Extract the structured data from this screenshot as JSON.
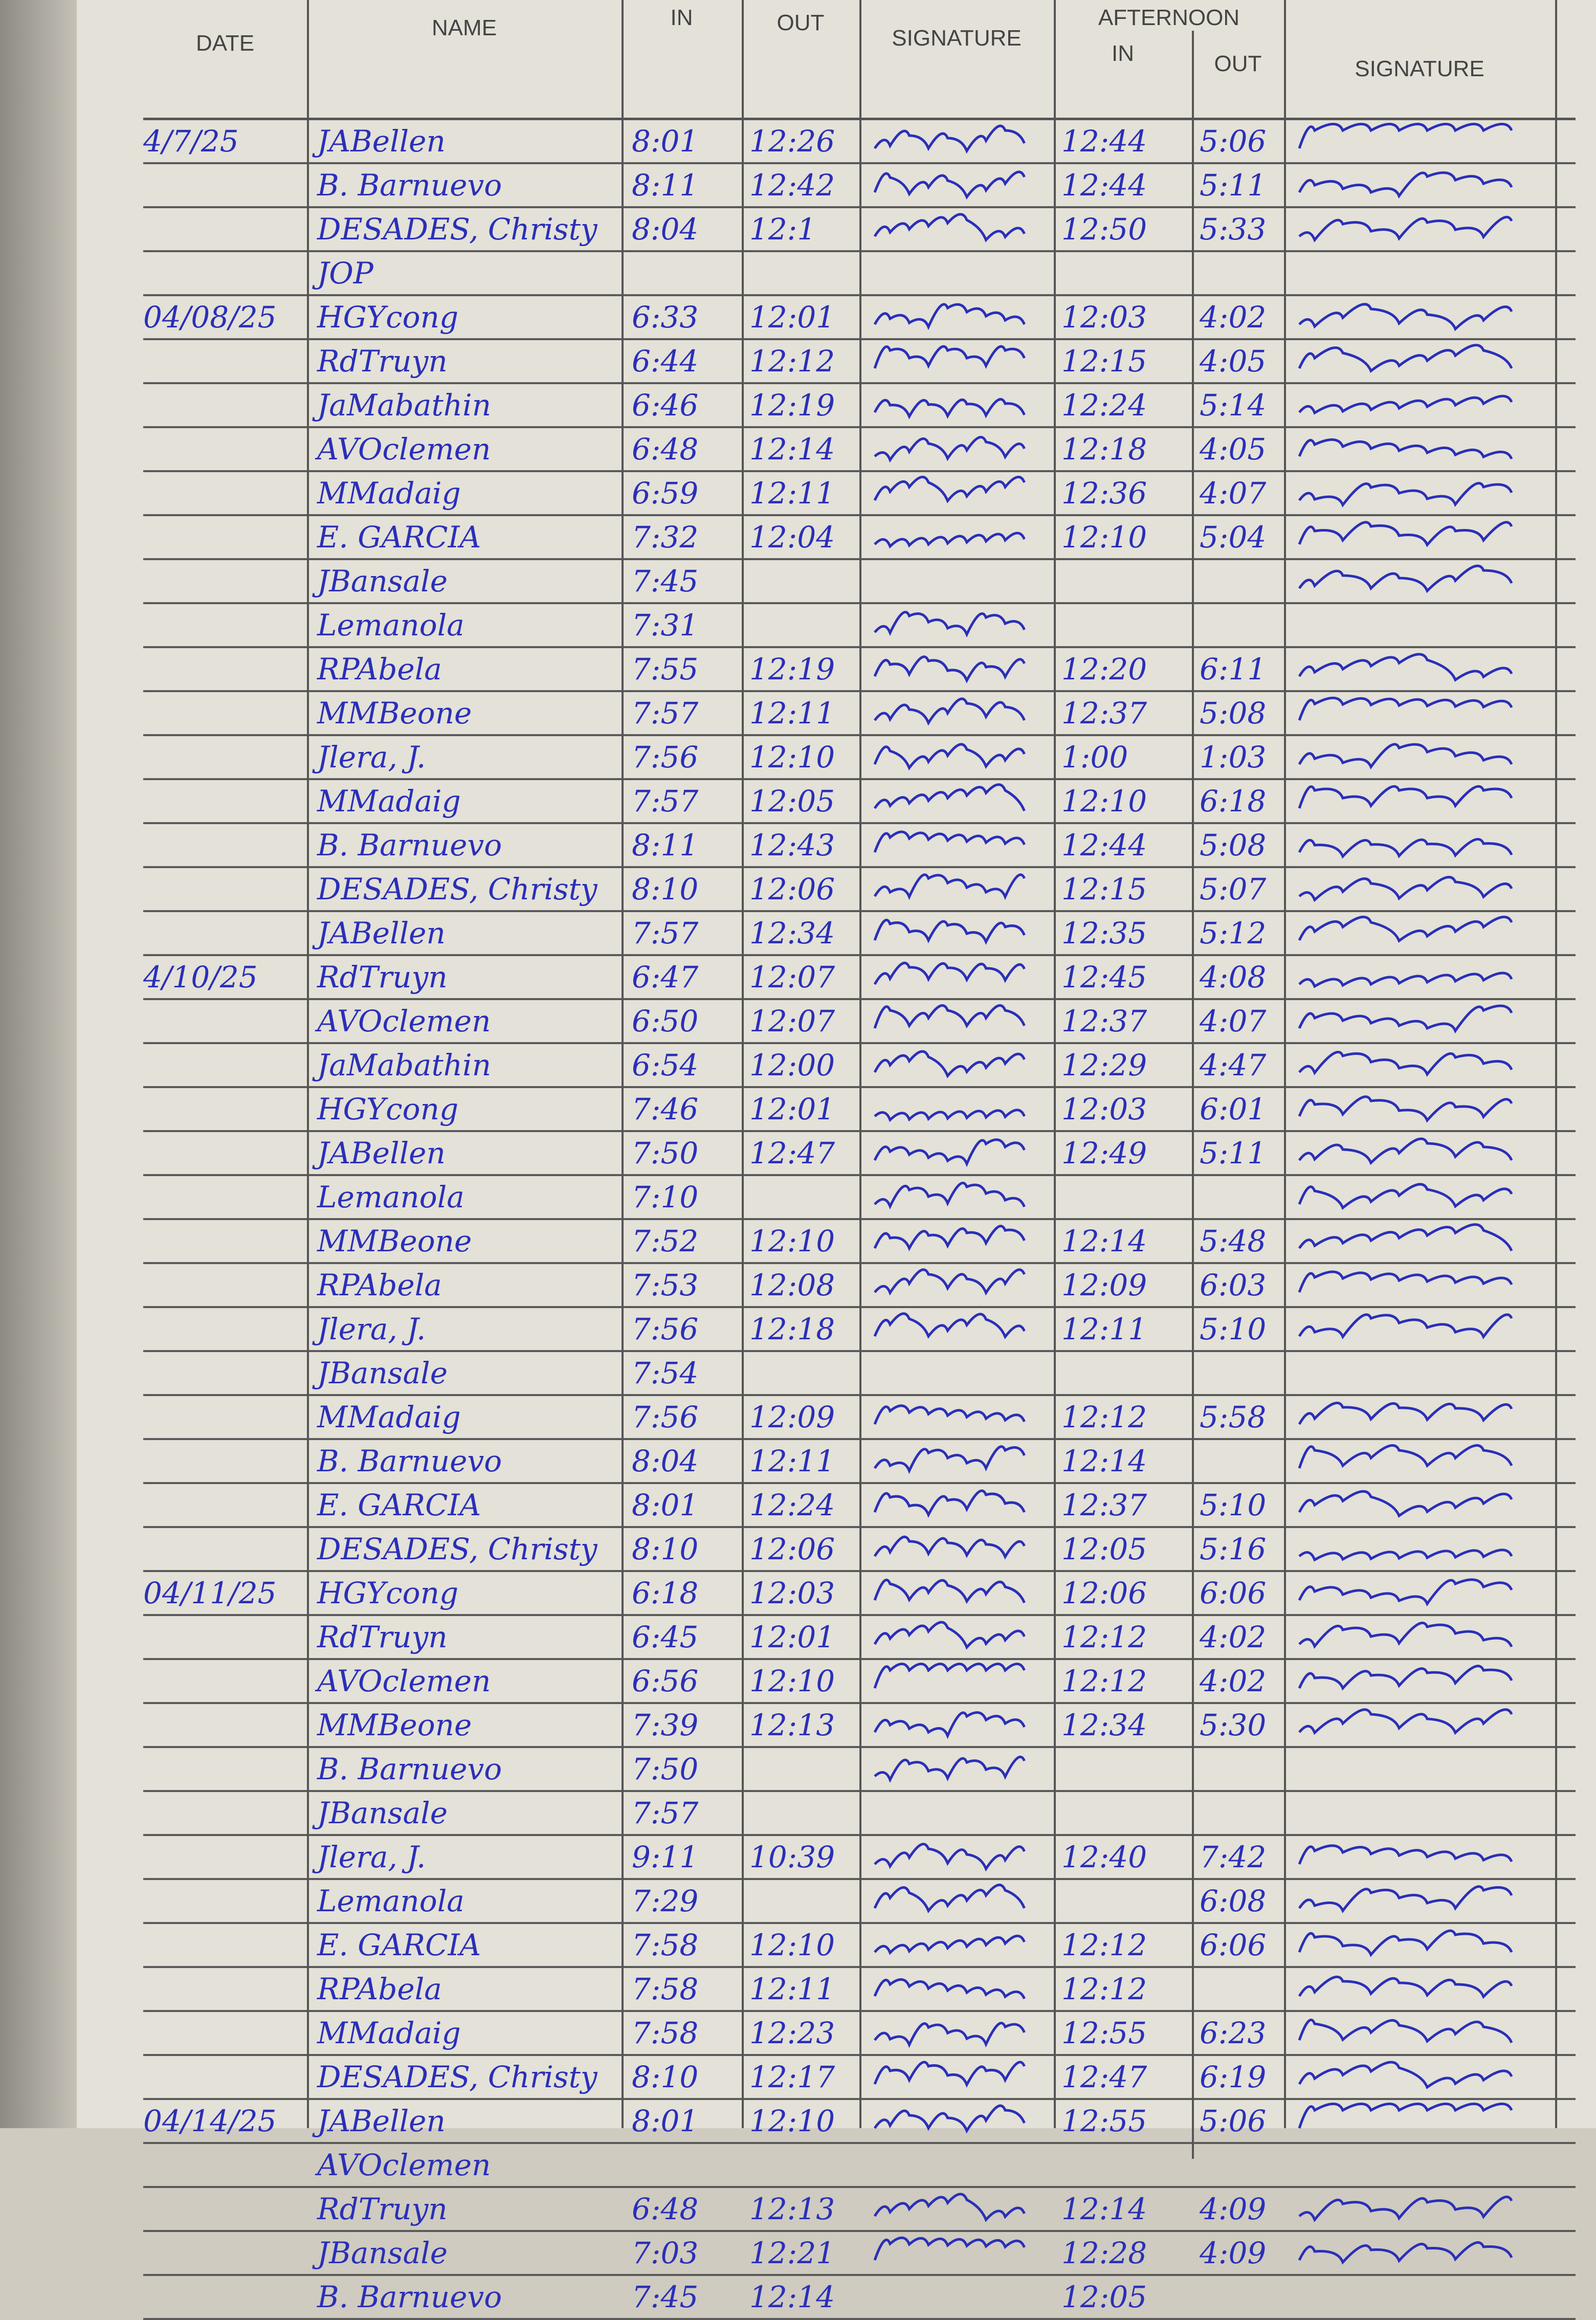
{
  "header": {
    "date": "DATE",
    "name": "NAME",
    "am_in": "IN",
    "am_out": "OUT",
    "am_signature": "SIGNATURE",
    "afternoon": "AFTERNOON",
    "pm_in": "IN",
    "pm_out": "OUT",
    "pm_signature": "SIGNATURE"
  },
  "ink_color": "#2a2fb8",
  "rows": [
    {
      "date": "4/7/25",
      "name": "JABellen",
      "am_in": "8:01",
      "am_out": "12:26",
      "am_sig": true,
      "pm_in": "12:44",
      "pm_out": "5:06",
      "pm_sig": true
    },
    {
      "date": "",
      "name": "B. Barnuevo",
      "am_in": "8:11",
      "am_out": "12:42",
      "am_sig": true,
      "pm_in": "12:44",
      "pm_out": "5:11",
      "pm_sig": true
    },
    {
      "date": "",
      "name": "DESADES, Christy",
      "am_in": "8:04",
      "am_out": "12:1",
      "am_sig": true,
      "pm_in": "12:50",
      "pm_out": "5:33",
      "pm_sig": true
    },
    {
      "date": "",
      "name": "JOP",
      "am_in": "",
      "am_out": "",
      "am_sig": false,
      "pm_in": "",
      "pm_out": "",
      "pm_sig": false
    },
    {
      "date": "04/08/25",
      "name": "HGYcong",
      "am_in": "6:33",
      "am_out": "12:01",
      "am_sig": true,
      "pm_in": "12:03",
      "pm_out": "4:02",
      "pm_sig": true
    },
    {
      "date": "",
      "name": "RdTruyn",
      "am_in": "6:44",
      "am_out": "12:12",
      "am_sig": true,
      "pm_in": "12:15",
      "pm_out": "4:05",
      "pm_sig": true
    },
    {
      "date": "",
      "name": "JaMabathin",
      "am_in": "6:46",
      "am_out": "12:19",
      "am_sig": true,
      "pm_in": "12:24",
      "pm_out": "5:14",
      "pm_sig": true
    },
    {
      "date": "",
      "name": "AVOclemen",
      "am_in": "6:48",
      "am_out": "12:14",
      "am_sig": true,
      "pm_in": "12:18",
      "pm_out": "4:05",
      "pm_sig": true
    },
    {
      "date": "",
      "name": "MMadaig",
      "am_in": "6:59",
      "am_out": "12:11",
      "am_sig": true,
      "pm_in": "12:36",
      "pm_out": "4:07",
      "pm_sig": true
    },
    {
      "date": "",
      "name": "E. GARCIA",
      "am_in": "7:32",
      "am_out": "12:04",
      "am_sig": true,
      "pm_in": "12:10",
      "pm_out": "5:04",
      "pm_sig": true
    },
    {
      "date": "",
      "name": "JBansale",
      "am_in": "7:45",
      "am_out": "",
      "am_sig": false,
      "pm_in": "",
      "pm_out": "",
      "pm_sig": true
    },
    {
      "date": "",
      "name": "Lemanola",
      "am_in": "7:31",
      "am_out": "",
      "am_sig": true,
      "pm_in": "",
      "pm_out": "",
      "pm_sig": false
    },
    {
      "date": "",
      "name": "RPAbela",
      "am_in": "7:55",
      "am_out": "12:19",
      "am_sig": true,
      "pm_in": "12:20",
      "pm_out": "6:11",
      "pm_sig": true
    },
    {
      "date": "",
      "name": "MMBeone",
      "am_in": "7:57",
      "am_out": "12:11",
      "am_sig": true,
      "pm_in": "12:37",
      "pm_out": "5:08",
      "pm_sig": true
    },
    {
      "date": "",
      "name": "Jlera, J.",
      "am_in": "7:56",
      "am_out": "12:10",
      "am_sig": true,
      "pm_in": "1:00",
      "pm_out": "1:03",
      "pm_sig": true
    },
    {
      "date": "",
      "name": "MMadaig",
      "am_in": "7:57",
      "am_out": "12:05",
      "am_sig": true,
      "pm_in": "12:10",
      "pm_out": "6:18",
      "pm_sig": true
    },
    {
      "date": "",
      "name": "B. Barnuevo",
      "am_in": "8:11",
      "am_out": "12:43",
      "am_sig": true,
      "pm_in": "12:44",
      "pm_out": "5:08",
      "pm_sig": true
    },
    {
      "date": "",
      "name": "DESADES, Christy",
      "am_in": "8:10",
      "am_out": "12:06",
      "am_sig": true,
      "pm_in": "12:15",
      "pm_out": "5:07",
      "pm_sig": true
    },
    {
      "date": "",
      "name": "JABellen",
      "am_in": "7:57",
      "am_out": "12:34",
      "am_sig": true,
      "pm_in": "12:35",
      "pm_out": "5:12",
      "pm_sig": true
    },
    {
      "date": "4/10/25",
      "name": "RdTruyn",
      "am_in": "6:47",
      "am_out": "12:07",
      "am_sig": true,
      "pm_in": "12:45",
      "pm_out": "4:08",
      "pm_sig": true
    },
    {
      "date": "",
      "name": "AVOclemen",
      "am_in": "6:50",
      "am_out": "12:07",
      "am_sig": true,
      "pm_in": "12:37",
      "pm_out": "4:07",
      "pm_sig": true
    },
    {
      "date": "",
      "name": "JaMabathin",
      "am_in": "6:54",
      "am_out": "12:00",
      "am_sig": true,
      "pm_in": "12:29",
      "pm_out": "4:47",
      "pm_sig": true
    },
    {
      "date": "",
      "name": "HGYcong",
      "am_in": "7:46",
      "am_out": "12:01",
      "am_sig": true,
      "pm_in": "12:03",
      "pm_out": "6:01",
      "pm_sig": true
    },
    {
      "date": "",
      "name": "JABellen",
      "am_in": "7:50",
      "am_out": "12:47",
      "am_sig": true,
      "pm_in": "12:49",
      "pm_out": "5:11",
      "pm_sig": true
    },
    {
      "date": "",
      "name": "Lemanola",
      "am_in": "7:10",
      "am_out": "",
      "am_sig": true,
      "pm_in": "",
      "pm_out": "",
      "pm_sig": true
    },
    {
      "date": "",
      "name": "MMBeone",
      "am_in": "7:52",
      "am_out": "12:10",
      "am_sig": true,
      "pm_in": "12:14",
      "pm_out": "5:48",
      "pm_sig": true
    },
    {
      "date": "",
      "name": "RPAbela",
      "am_in": "7:53",
      "am_out": "12:08",
      "am_sig": true,
      "pm_in": "12:09",
      "pm_out": "6:03",
      "pm_sig": true
    },
    {
      "date": "",
      "name": "Jlera, J.",
      "am_in": "7:56",
      "am_out": "12:18",
      "am_sig": true,
      "pm_in": "12:11",
      "pm_out": "5:10",
      "pm_sig": true
    },
    {
      "date": "",
      "name": "JBansale",
      "am_in": "7:54",
      "am_out": "",
      "am_sig": false,
      "pm_in": "",
      "pm_out": "",
      "pm_sig": false
    },
    {
      "date": "",
      "name": "MMadaig",
      "am_in": "7:56",
      "am_out": "12:09",
      "am_sig": true,
      "pm_in": "12:12",
      "pm_out": "5:58",
      "pm_sig": true
    },
    {
      "date": "",
      "name": "B. Barnuevo",
      "am_in": "8:04",
      "am_out": "12:11",
      "am_sig": true,
      "pm_in": "12:14",
      "pm_out": "",
      "pm_sig": true
    },
    {
      "date": "",
      "name": "E. GARCIA",
      "am_in": "8:01",
      "am_out": "12:24",
      "am_sig": true,
      "pm_in": "12:37",
      "pm_out": "5:10",
      "pm_sig": true
    },
    {
      "date": "",
      "name": "DESADES, Christy",
      "am_in": "8:10",
      "am_out": "12:06",
      "am_sig": true,
      "pm_in": "12:05",
      "pm_out": "5:16",
      "pm_sig": true
    },
    {
      "date": "04/11/25",
      "name": "HGYcong",
      "am_in": "6:18",
      "am_out": "12:03",
      "am_sig": true,
      "pm_in": "12:06",
      "pm_out": "6:06",
      "pm_sig": true
    },
    {
      "date": "",
      "name": "RdTruyn",
      "am_in": "6:45",
      "am_out": "12:01",
      "am_sig": true,
      "pm_in": "12:12",
      "pm_out": "4:02",
      "pm_sig": true
    },
    {
      "date": "",
      "name": "AVOclemen",
      "am_in": "6:56",
      "am_out": "12:10",
      "am_sig": true,
      "pm_in": "12:12",
      "pm_out": "4:02",
      "pm_sig": true
    },
    {
      "date": "",
      "name": "MMBeone",
      "am_in": "7:39",
      "am_out": "12:13",
      "am_sig": true,
      "pm_in": "12:34",
      "pm_out": "5:30",
      "pm_sig": true
    },
    {
      "date": "",
      "name": "B. Barnuevo",
      "am_in": "7:50",
      "am_out": "",
      "am_sig": true,
      "pm_in": "",
      "pm_out": "",
      "pm_sig": false
    },
    {
      "date": "",
      "name": "JBansale",
      "am_in": "7:57",
      "am_out": "",
      "am_sig": false,
      "pm_in": "",
      "pm_out": "",
      "pm_sig": false
    },
    {
      "date": "",
      "name": "Jlera, J.",
      "am_in": "9:11",
      "am_out": "10:39",
      "am_sig": true,
      "pm_in": "12:40",
      "pm_out": "7:42",
      "pm_sig": true
    },
    {
      "date": "",
      "name": "Lemanola",
      "am_in": "7:29",
      "am_out": "",
      "am_sig": true,
      "pm_in": "",
      "pm_out": "6:08",
      "pm_sig": true
    },
    {
      "date": "",
      "name": "E. GARCIA",
      "am_in": "7:58",
      "am_out": "12:10",
      "am_sig": true,
      "pm_in": "12:12",
      "pm_out": "6:06",
      "pm_sig": true
    },
    {
      "date": "",
      "name": "RPAbela",
      "am_in": "7:58",
      "am_out": "12:11",
      "am_sig": true,
      "pm_in": "12:12",
      "pm_out": "",
      "pm_sig": true
    },
    {
      "date": "",
      "name": "MMadaig",
      "am_in": "7:58",
      "am_out": "12:23",
      "am_sig": true,
      "pm_in": "12:55",
      "pm_out": "6:23",
      "pm_sig": true
    },
    {
      "date": "",
      "name": "DESADES, Christy",
      "am_in": "8:10",
      "am_out": "12:17",
      "am_sig": true,
      "pm_in": "12:47",
      "pm_out": "6:19",
      "pm_sig": true
    },
    {
      "date": "04/14/25",
      "name": "JABellen",
      "am_in": "8:01",
      "am_out": "12:10",
      "am_sig": true,
      "pm_in": "12:55",
      "pm_out": "5:06",
      "pm_sig": true
    },
    {
      "date": "",
      "name": "AVOclemen",
      "am_in": "",
      "am_out": "",
      "am_sig": false,
      "pm_in": "",
      "pm_out": "",
      "pm_sig": false
    },
    {
      "date": "",
      "name": "RdTruyn",
      "am_in": "6:48",
      "am_out": "12:13",
      "am_sig": true,
      "pm_in": "12:14",
      "pm_out": "4:09",
      "pm_sig": true
    },
    {
      "date": "",
      "name": "JBansale",
      "am_in": "7:03",
      "am_out": "12:21",
      "am_sig": true,
      "pm_in": "12:28",
      "pm_out": "4:09",
      "pm_sig": true
    },
    {
      "date": "",
      "name": "B. Barnuevo",
      "am_in": "7:45",
      "am_out": "12:14",
      "am_sig": false,
      "pm_in": "12:05",
      "pm_out": "",
      "pm_sig": false
    }
  ]
}
